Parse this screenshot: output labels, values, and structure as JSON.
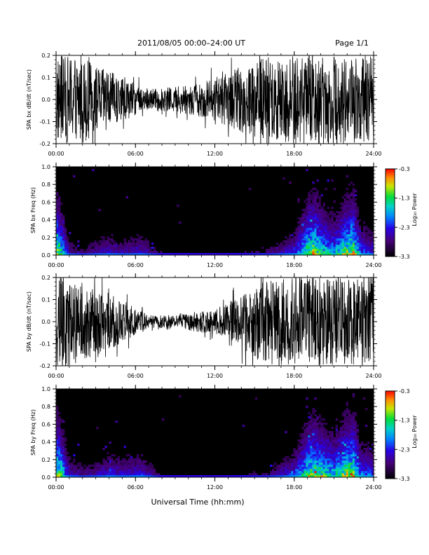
{
  "header": {
    "title": "2011/08/05  00:00–24:00 UT",
    "page": "Page 1/1"
  },
  "xlabel": "Universal Time (hh:mm)",
  "x_ticks": [
    "00:00",
    "06:00",
    "12:00",
    "18:00",
    "24:00"
  ],
  "colorbar": {
    "label": "Log₁₀ Power",
    "ticks": [
      "-0.3",
      "-1.3",
      "-2.3",
      "-3.3"
    ],
    "range": [
      -3.3,
      -0.3
    ]
  },
  "chart_data": [
    {
      "type": "line",
      "ylabel": "SPA bx dB/dt (nT/sec)",
      "ylim": [
        -0.2,
        0.2
      ],
      "y_ticks": [
        "0.2",
        "0.1",
        "0.0",
        "-0.1",
        "-0.2"
      ],
      "xlim_hours": [
        0,
        24
      ],
      "amplitude_envelope": {
        "hours": [
          0,
          1,
          2,
          3,
          4,
          5,
          6,
          7,
          8,
          9,
          10,
          11,
          12,
          13,
          14,
          15,
          16,
          17,
          18,
          19,
          20,
          21,
          22,
          23,
          24
        ],
        "amplitude": [
          0.2,
          0.2,
          0.2,
          0.15,
          0.13,
          0.1,
          0.07,
          0.05,
          0.05,
          0.06,
          0.07,
          0.08,
          0.1,
          0.12,
          0.15,
          0.18,
          0.2,
          0.2,
          0.2,
          0.2,
          0.2,
          0.2,
          0.2,
          0.2,
          0.2
        ]
      }
    },
    {
      "type": "heatmap",
      "ylabel": "SPA bx Freq (Hz)",
      "ylim": [
        0.0,
        1.0
      ],
      "y_ticks": [
        "1.0",
        "0.8",
        "0.6",
        "0.4",
        "0.2",
        "0.0"
      ],
      "xlim_hours": [
        0,
        24
      ],
      "activity": {
        "hours": [
          0,
          0.3,
          1,
          2,
          3,
          4,
          5,
          6.5,
          8,
          12,
          16,
          18,
          19,
          19.5,
          20,
          21,
          22,
          22.5,
          23,
          24
        ],
        "level": [
          0.9,
          0.8,
          0.3,
          0.2,
          0.3,
          0.35,
          0.3,
          0.35,
          0.15,
          0.1,
          0.2,
          0.4,
          0.8,
          0.9,
          0.75,
          0.6,
          0.85,
          0.9,
          0.5,
          0.4
        ]
      }
    },
    {
      "type": "line",
      "ylabel": "SPA by dB/dt (nT/sec)",
      "ylim": [
        -0.2,
        0.2
      ],
      "y_ticks": [
        "0.2",
        "0.1",
        "0.0",
        "-0.1",
        "-0.2"
      ],
      "xlim_hours": [
        0,
        24
      ],
      "amplitude_envelope": {
        "hours": [
          0,
          1,
          2,
          3,
          4,
          5,
          6,
          7,
          8,
          9,
          10,
          11,
          12,
          13,
          14,
          15,
          16,
          17,
          18,
          19,
          20,
          21,
          22,
          23,
          24
        ],
        "amplitude": [
          0.2,
          0.2,
          0.18,
          0.15,
          0.13,
          0.1,
          0.06,
          0.03,
          0.03,
          0.03,
          0.04,
          0.05,
          0.06,
          0.08,
          0.12,
          0.16,
          0.19,
          0.2,
          0.2,
          0.2,
          0.2,
          0.2,
          0.2,
          0.2,
          0.2
        ]
      }
    },
    {
      "type": "heatmap",
      "ylabel": "SPA by Freq (Hz)",
      "ylim": [
        0.0,
        1.0
      ],
      "y_ticks": [
        "1.0",
        "0.8",
        "0.6",
        "0.4",
        "0.2",
        "0.0"
      ],
      "xlim_hours": [
        0,
        24
      ],
      "activity": {
        "hours": [
          0,
          0.3,
          1,
          2,
          3,
          4,
          5,
          6.5,
          8,
          12,
          16,
          18,
          19,
          19.5,
          20,
          21,
          22,
          22.5,
          23,
          24
        ],
        "level": [
          0.9,
          0.85,
          0.35,
          0.25,
          0.3,
          0.4,
          0.35,
          0.4,
          0.15,
          0.1,
          0.2,
          0.45,
          0.8,
          0.9,
          0.8,
          0.65,
          0.9,
          0.9,
          0.55,
          0.45
        ]
      }
    }
  ]
}
